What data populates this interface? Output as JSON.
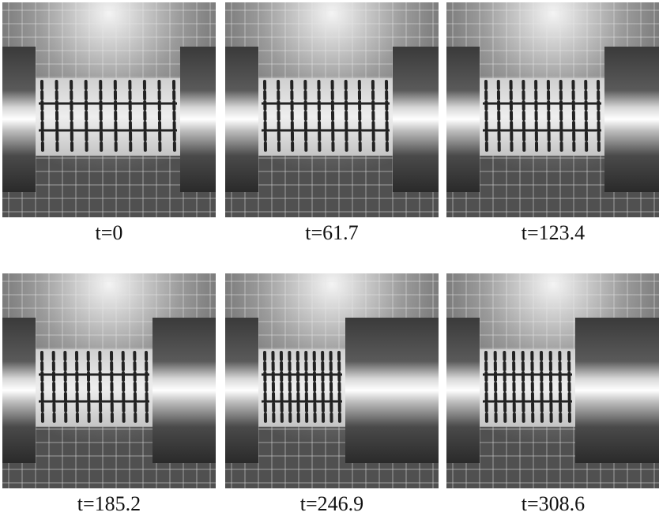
{
  "panels": [
    {
      "caption": "t=0"
    },
    {
      "caption": "t=61.7"
    },
    {
      "caption": "t=123.4"
    },
    {
      "caption": "t=185.2"
    },
    {
      "caption": "t=246.9"
    },
    {
      "caption": "t=308.6"
    }
  ]
}
